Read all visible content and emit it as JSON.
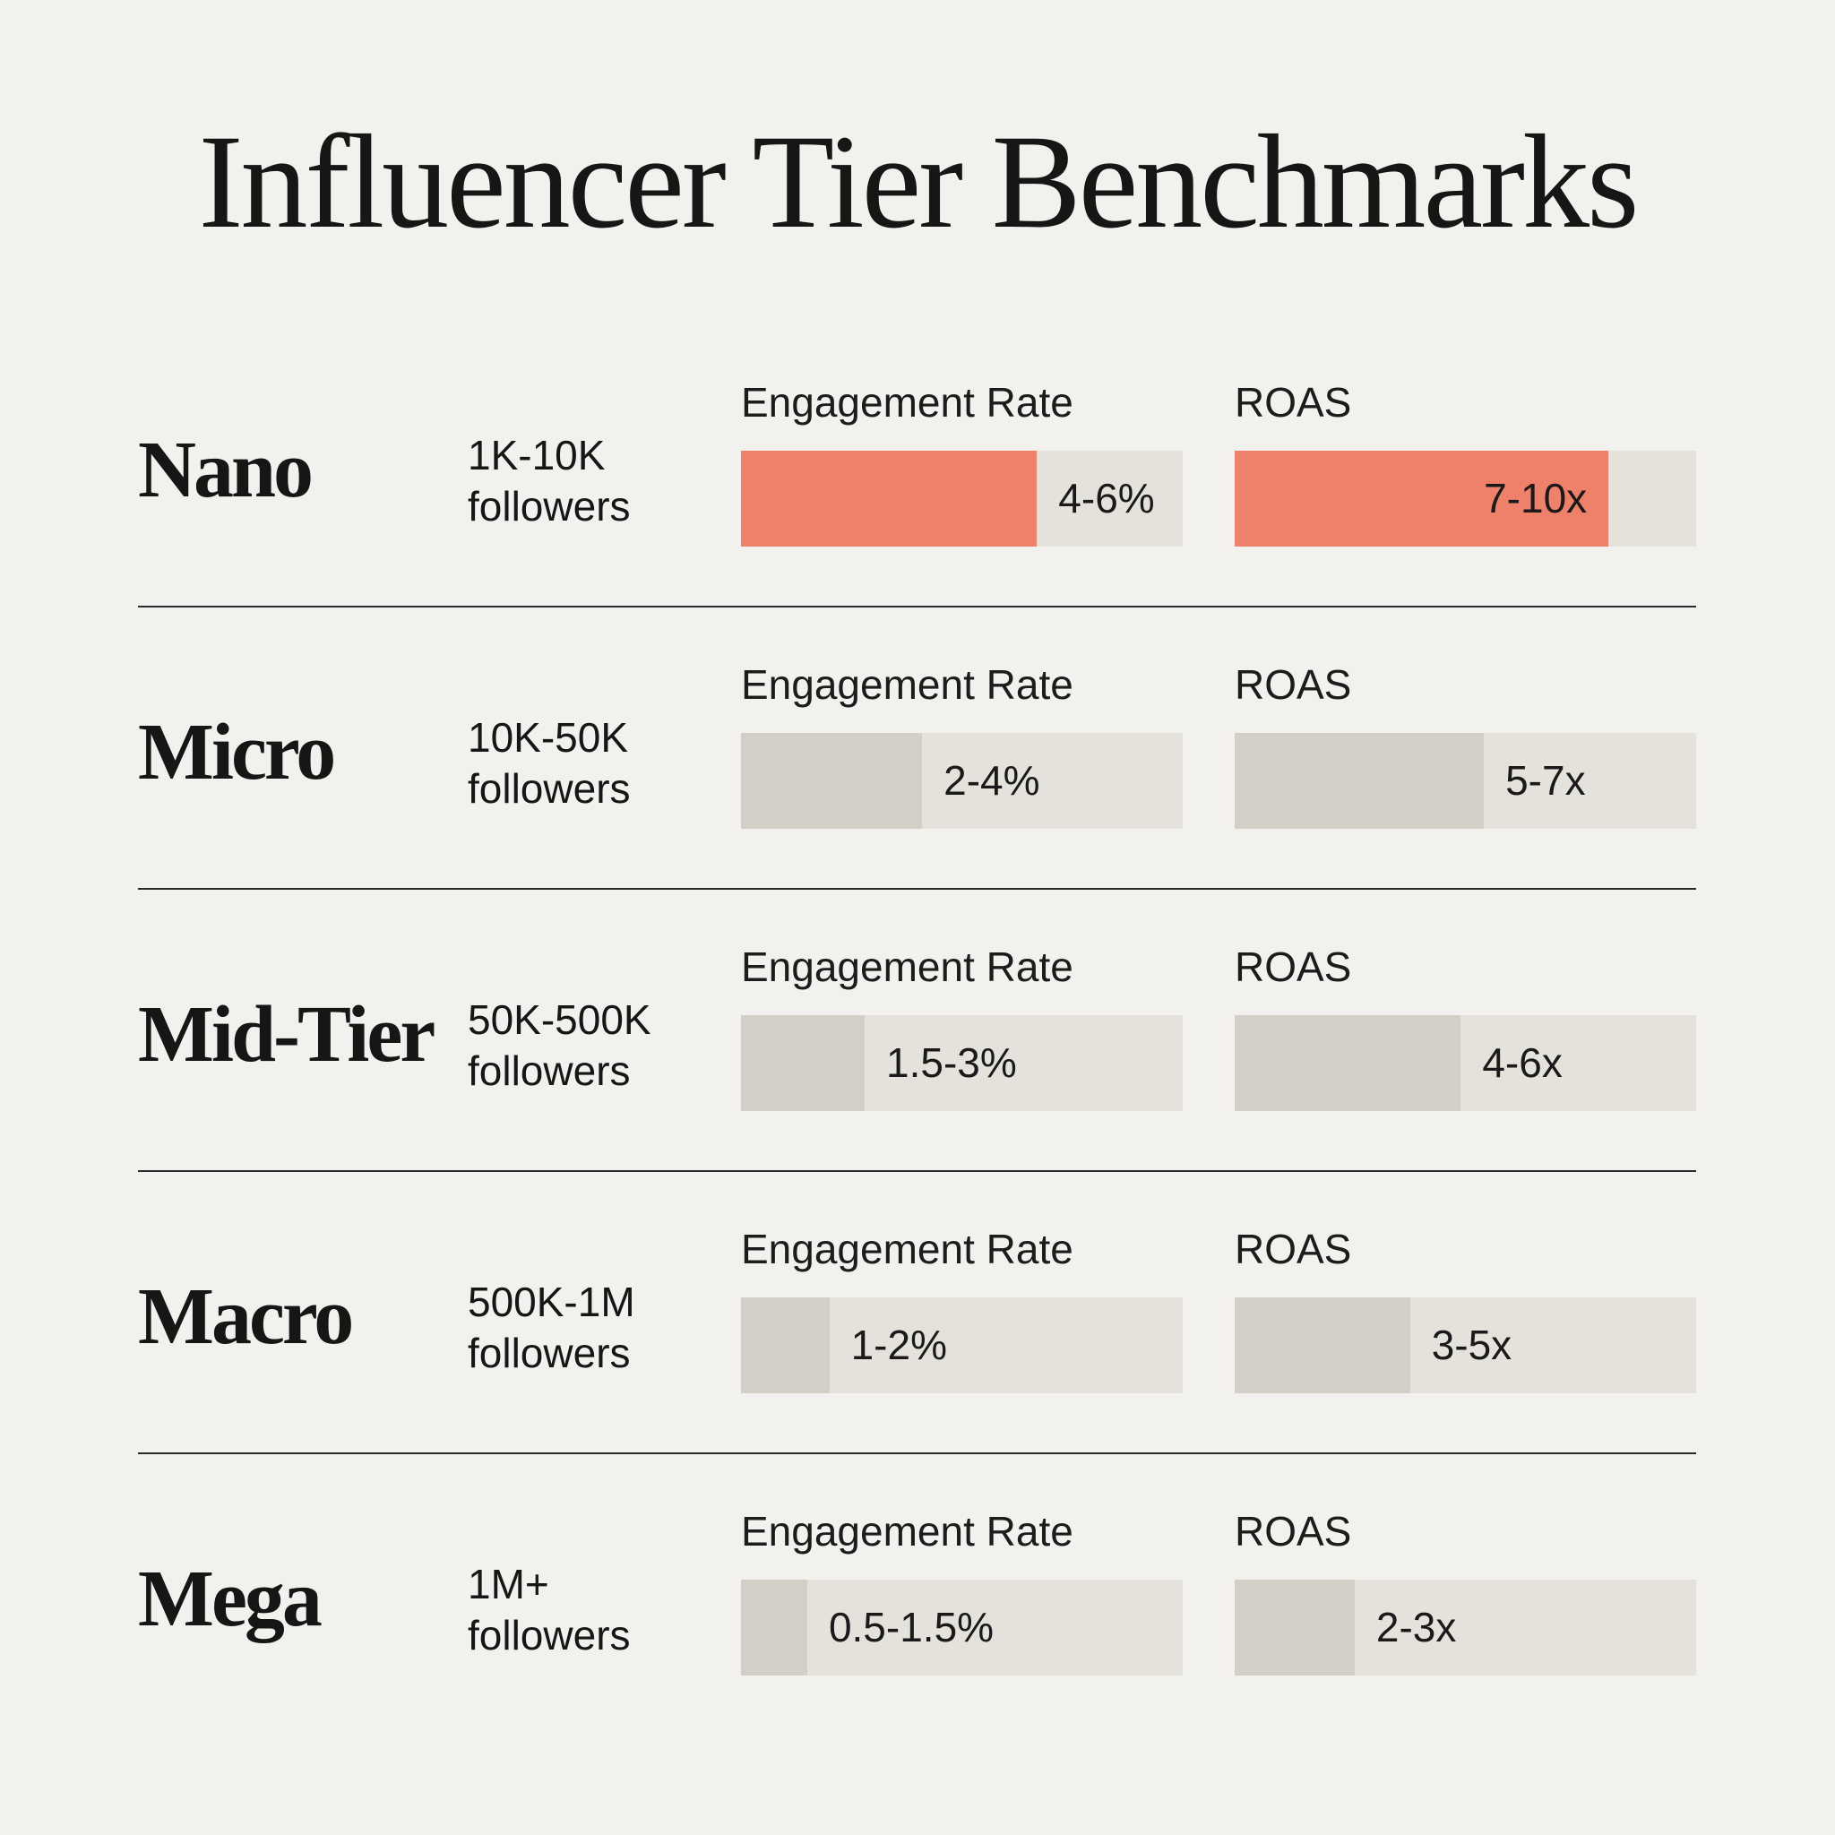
{
  "title": "Influencer Tier Benchmarks",
  "labels": {
    "engagement": "Engagement Rate",
    "roas": "ROAS",
    "followers": "followers"
  },
  "colors": {
    "highlight": "#ef806a",
    "fill": "#d3cec6",
    "track": "#e5e2dc",
    "background": "#f2f1ee"
  },
  "chart_data": {
    "type": "bar",
    "title": "Influencer Tier Benchmarks",
    "categories": [
      "Nano",
      "Micro",
      "Mid-Tier",
      "Macro",
      "Mega"
    ],
    "follower_ranges": [
      "1K-10K",
      "10K-50K",
      "50K-500K",
      "500K-1M",
      "1M+"
    ],
    "series": [
      {
        "name": "Engagement Rate",
        "labels": [
          "4-6%",
          "2-4%",
          "1.5-3%",
          "1-2%",
          "0.5-1.5%"
        ],
        "fill_fraction": [
          0.67,
          0.41,
          0.28,
          0.2,
          0.15
        ]
      },
      {
        "name": "ROAS",
        "labels": [
          "7-10x",
          "5-7x",
          "4-6x",
          "3-5x",
          "2-3x"
        ],
        "fill_fraction": [
          0.81,
          0.54,
          0.49,
          0.38,
          0.26
        ]
      }
    ],
    "highlighted_category": "Nano"
  }
}
